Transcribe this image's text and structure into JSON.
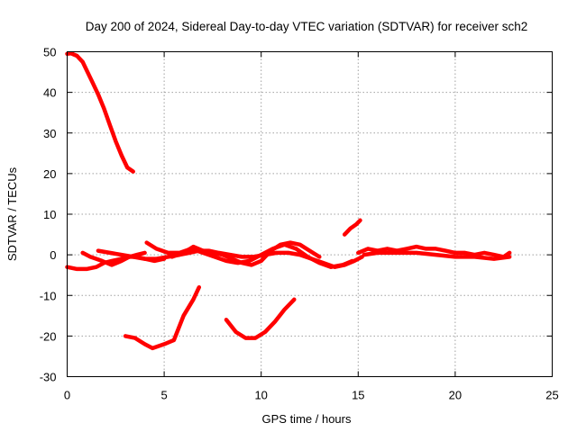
{
  "chart_data": {
    "type": "line",
    "title": "Day 200 of 2024, Sidereal Day-to-day VTEC variation (SDTVAR) for receiver sch2",
    "xlabel": "GPS time / hours",
    "ylabel": "SDTVAR / TECUs",
    "xlim": [
      0,
      25
    ],
    "ylim": [
      -30,
      50
    ],
    "xticks": [
      0,
      5,
      10,
      15,
      20,
      25
    ],
    "yticks": [
      -30,
      -20,
      -10,
      0,
      10,
      20,
      30,
      40,
      50
    ],
    "grid": true,
    "legend": "none",
    "series_color": "#ff0000",
    "series": [
      {
        "name": "track-1",
        "x": [
          0.0,
          0.2,
          0.5,
          0.8,
          1.0,
          1.3,
          1.6,
          1.9,
          2.2,
          2.5,
          2.8,
          3.1,
          3.4
        ],
        "y": [
          49.5,
          49.6,
          49.0,
          47.5,
          45.5,
          42.5,
          39.5,
          36.0,
          32.0,
          28.0,
          24.5,
          21.5,
          20.5
        ]
      },
      {
        "name": "track-2",
        "x": [
          0.0,
          0.5,
          1.0,
          1.5,
          1.9,
          2.3,
          2.8,
          3.2,
          3.6,
          4.0,
          4.5,
          5.0
        ],
        "y": [
          -3.0,
          -3.5,
          -3.5,
          -3.0,
          -2.0,
          -1.5,
          -1.0,
          -0.5,
          -0.5,
          -1.0,
          -1.5,
          -1.0
        ]
      },
      {
        "name": "track-3",
        "x": [
          0.8,
          1.2,
          1.8,
          2.3,
          2.8,
          3.2,
          3.6,
          4.0
        ],
        "y": [
          0.5,
          -0.5,
          -1.5,
          -2.5,
          -1.5,
          -0.5,
          0.0,
          0.5
        ]
      },
      {
        "name": "track-4",
        "x": [
          1.6,
          2.2,
          2.8,
          3.4,
          4.0,
          4.6,
          5.2,
          5.8,
          6.3,
          6.8,
          7.3,
          7.8,
          8.4,
          9.0,
          9.6,
          10.2,
          10.8,
          11.4,
          12.0,
          12.6,
          13.2,
          13.8,
          14.3,
          14.8,
          15.2
        ],
        "y": [
          1.0,
          0.5,
          0.0,
          -0.5,
          -1.0,
          -1.0,
          -0.5,
          0.0,
          0.5,
          1.0,
          1.0,
          0.5,
          0.0,
          -0.5,
          -0.5,
          0.0,
          0.5,
          0.5,
          0.0,
          -1.0,
          -2.0,
          -3.0,
          -2.5,
          -1.5,
          -0.5
        ]
      },
      {
        "name": "track-5",
        "x": [
          4.1,
          4.6,
          5.2,
          5.8,
          6.4,
          7.0,
          7.6,
          8.2,
          8.8,
          9.4,
          10.0,
          10.6,
          11.2,
          11.8,
          12.4,
          13.0,
          13.6,
          14.2,
          14.7
        ],
        "y": [
          3.0,
          1.5,
          0.5,
          0.5,
          1.5,
          0.5,
          -0.5,
          -1.5,
          -2.0,
          -1.5,
          0.0,
          1.5,
          2.5,
          1.5,
          -0.5,
          -2.0,
          -3.0,
          -2.5,
          -1.5
        ]
      },
      {
        "name": "track-6",
        "x": [
          5.4,
          6.0,
          6.5,
          7.0,
          7.5,
          8.0,
          8.5,
          9.0,
          9.5,
          10.0,
          10.5,
          11.0,
          11.5,
          12.0,
          12.5,
          13.0
        ],
        "y": [
          -0.5,
          0.5,
          2.0,
          1.0,
          0.5,
          0.0,
          -1.0,
          -2.0,
          -2.5,
          -1.5,
          1.0,
          2.5,
          3.0,
          2.5,
          1.0,
          -0.5
        ]
      },
      {
        "name": "track-7",
        "x": [
          14.3,
          14.6,
          14.9,
          15.1
        ],
        "y": [
          5.0,
          6.5,
          7.5,
          8.5
        ]
      },
      {
        "name": "track-8",
        "x": [
          15.0,
          15.5,
          16.0,
          16.5,
          17.0,
          17.5,
          18.0,
          18.5,
          19.0,
          19.5,
          20.0,
          20.5,
          21.0,
          21.5,
          22.0,
          22.5,
          22.8
        ],
        "y": [
          0.5,
          1.5,
          1.0,
          1.5,
          1.0,
          1.5,
          2.0,
          1.5,
          1.5,
          1.0,
          0.5,
          0.5,
          0.0,
          0.5,
          0.0,
          -0.5,
          0.5
        ]
      },
      {
        "name": "track-9",
        "x": [
          15.3,
          16.0,
          17.0,
          18.0,
          19.0,
          20.0,
          21.0,
          22.0,
          22.8
        ],
        "y": [
          0.0,
          0.5,
          0.5,
          0.5,
          0.0,
          -0.5,
          -0.5,
          -1.0,
          -0.5
        ]
      },
      {
        "name": "track-10",
        "x": [
          3.0,
          3.5,
          4.0,
          4.4,
          5.0,
          5.5,
          6.0,
          6.5,
          6.8
        ],
        "y": [
          -20.0,
          -20.5,
          -22.0,
          -23.0,
          -22.0,
          -21.0,
          -15.0,
          -11.0,
          -8.0
        ]
      },
      {
        "name": "track-11",
        "x": [
          8.2,
          8.7,
          9.2,
          9.7,
          10.2,
          10.7,
          11.2,
          11.7
        ],
        "y": [
          -16.0,
          -19.0,
          -20.5,
          -20.5,
          -19.0,
          -16.5,
          -13.5,
          -11.0
        ]
      }
    ]
  }
}
